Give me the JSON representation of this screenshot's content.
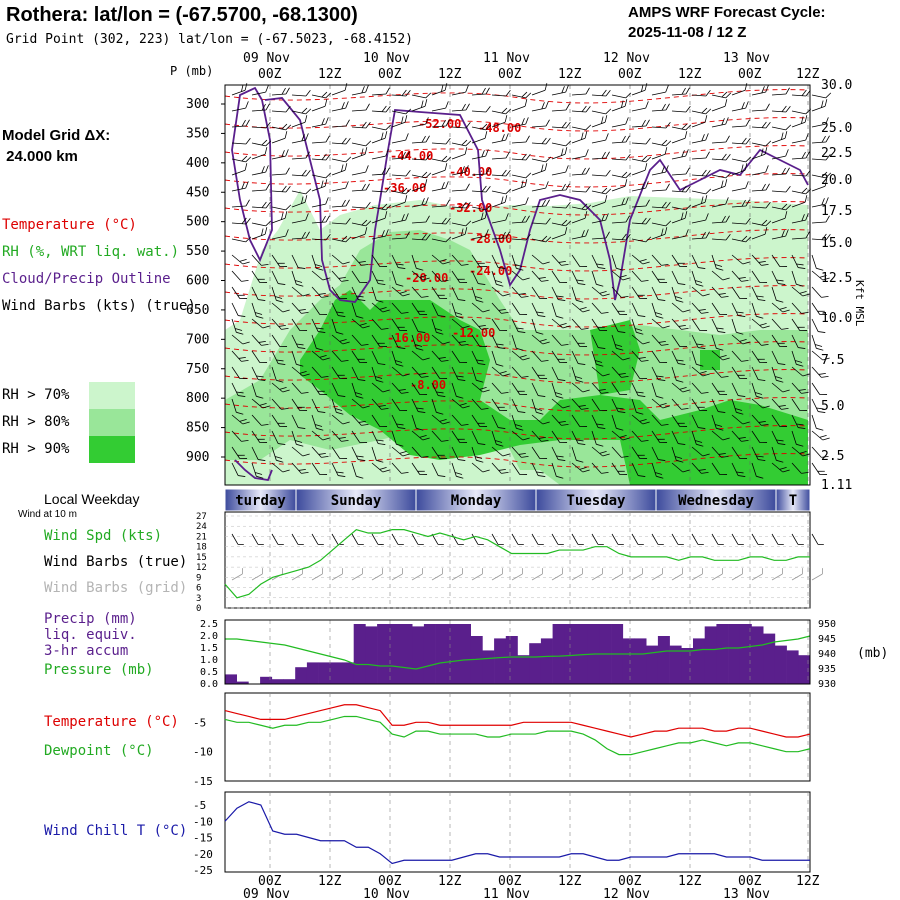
{
  "header": {
    "title": "Rothera:  lat/lon = (-67.5700, -68.1300)",
    "subtitle": "Grid Point (302, 223) lat/lon = (-67.5023, -68.4152)",
    "cycle_line1": "AMPS WRF Forecast Cycle:",
    "cycle_line2": "2025-11-08 / 12  Z"
  },
  "left_labels": {
    "pressure_unit": "P (mb)",
    "model_grid": "Model Grid ΔX:",
    "model_grid_val": " 24.000 km",
    "temperature": "Temperature (°C)",
    "rh": "RH (%, WRT liq. wat.)",
    "cloud": "Cloud/Precip Outline",
    "wind": "Wind Barbs (kts) (true)",
    "rh70": "RH > 70%",
    "rh80": "RH > 80%",
    "rh90": "RH > 90%",
    "weekday": "Local Weekday",
    "wind10": "Wind at 10 m",
    "wspd": "Wind Spd (kts)",
    "wbarbs_true": "Wind Barbs (true)",
    "wbarbs_grid": "Wind Barbs (grid)",
    "precip1": "Precip (mm)",
    "precip2": "liq. equiv.",
    "precip3": "3-hr accum",
    "pressure": "Pressure (mb)",
    "mb_unit": "(mb)",
    "t2": "Temperature (°C)",
    "td2": "Dewpoint (°C)",
    "wchill": "Wind Chill T (°C)",
    "kft": "Kft MSL"
  },
  "colors": {
    "rh70": "#ccf5cc",
    "rh80": "#99e699",
    "rh90": "#33cc33",
    "temperature": "#e00000",
    "cloud": "#5a1f8c",
    "green_line": "#22bb22",
    "precip_bar": "#5a1f8c",
    "windchill": "#1a1aa8",
    "label_red": "#dd0000",
    "label_green": "#22aa22",
    "label_purple": "#5a1f8c",
    "label_gray": "#b4b4b4",
    "label_blue": "#1a1aa8"
  },
  "time_axis": {
    "top_dates": [
      "09 Nov",
      "10 Nov",
      "11 Nov",
      "12 Nov",
      "13 Nov"
    ],
    "hour_labels": [
      "00Z",
      "12Z",
      "00Z",
      "12Z",
      "00Z",
      "12Z",
      "00Z",
      "12Z",
      "00Z",
      "12Z"
    ],
    "weekdays": [
      "turday",
      "Sunday",
      "Monday",
      "Tuesday",
      "Wednesday",
      "T"
    ]
  },
  "chart_data": [
    {
      "type": "heatmap",
      "panel": "vertical cross-section",
      "y_axis_label": "P (mb)",
      "y_ticks": [
        300,
        350,
        400,
        450,
        500,
        550,
        600,
        650,
        700,
        750,
        800,
        850,
        900
      ],
      "y_right_ticks": [
        "30.0",
        "25.0",
        "22.5",
        "20.0",
        "17.5",
        "15.0",
        "12.5",
        "10.0",
        "7.5",
        "5.0",
        "2.5",
        "1.11"
      ],
      "temperature_labels": [
        "-52.00",
        "-48.00",
        "-44.00",
        "-40.00",
        "-36.00",
        "-32.00",
        "-28.00",
        "-24.00",
        "-20.00",
        "-16.00",
        "-12.00",
        "-8.00"
      ],
      "legend": [
        "RH > 70%",
        "RH > 80%",
        "RH > 90%"
      ]
    },
    {
      "type": "line",
      "panel": "10 m wind",
      "y_ticks": [
        0,
        3,
        6,
        9,
        12,
        15,
        18,
        21,
        24,
        27
      ],
      "series": [
        {
          "name": "Wind Spd (kts)",
          "values": [
            7,
            3,
            4,
            7,
            9,
            10,
            11,
            12,
            14,
            17,
            20,
            23,
            22,
            22,
            23,
            23,
            22,
            21,
            22,
            21,
            20,
            21,
            20,
            18,
            16,
            16,
            16,
            16,
            17,
            17,
            17,
            18,
            18,
            16,
            15,
            15,
            15,
            15,
            14,
            15,
            15,
            14,
            14,
            14,
            15,
            15,
            14,
            14,
            15,
            15
          ]
        }
      ]
    },
    {
      "type": "bar",
      "panel": "precipitation and pressure",
      "y_ticks_left": [
        "0.0",
        "0.5",
        "1.0",
        "1.5",
        "2.0",
        "2.5"
      ],
      "y_ticks_right": [
        930,
        935,
        940,
        945,
        950
      ],
      "series": [
        {
          "name": "Precip (mm)",
          "values": [
            0.4,
            0.1,
            0,
            0.3,
            0.2,
            0.2,
            0.7,
            0.9,
            0.9,
            0.9,
            0.9,
            2.5,
            2.4,
            2.5,
            2.5,
            2.5,
            2.4,
            2.5,
            2.5,
            2.5,
            2.5,
            2.0,
            1.4,
            1.9,
            2.0,
            1.2,
            1.7,
            1.9,
            2.5,
            2.5,
            2.5,
            2.5,
            2.5,
            2.5,
            1.9,
            1.9,
            1.6,
            2.0,
            1.6,
            1.5,
            1.9,
            2.4,
            2.5,
            2.5,
            2.5,
            2.4,
            2.1,
            1.6,
            1.4,
            1.2
          ]
        },
        {
          "name": "Pressure (mb)",
          "values": [
            945,
            945,
            944.5,
            944,
            943.5,
            943,
            942,
            941,
            940,
            939,
            938,
            936.5,
            936.5,
            936,
            936,
            935.5,
            935,
            936,
            937,
            937.5,
            938,
            938.2,
            938.5,
            938.8,
            939,
            939,
            939,
            939.2,
            939.3,
            939.5,
            939.8,
            940,
            940,
            940,
            940,
            940,
            940.5,
            941,
            941,
            941,
            941.5,
            941.5,
            942,
            942,
            942.5,
            943,
            944,
            944.5,
            945,
            946
          ]
        }
      ]
    },
    {
      "type": "line",
      "panel": "2 m temperature and dewpoint",
      "y_ticks": [
        -5,
        -10,
        -15
      ],
      "series": [
        {
          "name": "Temperature (°C)",
          "values": [
            -3,
            -3.5,
            -4,
            -4.5,
            -4.5,
            -4.5,
            -4,
            -3.5,
            -3,
            -2.5,
            -2,
            -2,
            -2.5,
            -3,
            -5.5,
            -5.5,
            -5,
            -5,
            -5.5,
            -5.5,
            -5.5,
            -5.5,
            -5.5,
            -5.5,
            -5.5,
            -5,
            -5,
            -5,
            -5,
            -5,
            -5.5,
            -6,
            -6.5,
            -7,
            -7.5,
            -7,
            -6.5,
            -6.5,
            -6,
            -6,
            -6,
            -6.5,
            -6.5,
            -6,
            -6,
            -6.5,
            -7,
            -7.5,
            -7.5,
            -7
          ]
        },
        {
          "name": "Dewpoint (°C)",
          "values": [
            -4.5,
            -5,
            -5,
            -5.5,
            -6,
            -5.5,
            -5.5,
            -5,
            -5,
            -4.5,
            -4,
            -4,
            -4.5,
            -5,
            -7,
            -7.5,
            -6.5,
            -6.5,
            -7,
            -7,
            -7,
            -7,
            -7.5,
            -7.5,
            -7,
            -7,
            -7,
            -6.5,
            -6.5,
            -6.5,
            -7,
            -8,
            -9.5,
            -10.5,
            -10.5,
            -10,
            -9.5,
            -9,
            -8.5,
            -8.5,
            -8,
            -8.5,
            -9,
            -8.5,
            -8.5,
            -9,
            -9.5,
            -10,
            -10,
            -9.5
          ]
        }
      ]
    },
    {
      "type": "line",
      "panel": "wind chill",
      "y_ticks": [
        -5,
        -10,
        -15,
        -20,
        -25
      ],
      "series": [
        {
          "name": "Wind Chill T (°C)",
          "values": [
            -10,
            -6,
            -4,
            -5,
            -13,
            -14,
            -14,
            -15,
            -16,
            -16,
            -16,
            -18,
            -18,
            -20,
            -23,
            -22,
            -22,
            -22,
            -22,
            -22,
            -21,
            -20,
            -20,
            -21,
            -21,
            -21,
            -21,
            -21,
            -21,
            -20,
            -20,
            -21,
            -22,
            -22,
            -21,
            -21,
            -21,
            -21,
            -20,
            -20,
            -20,
            -20,
            -21,
            -21,
            -21,
            -22,
            -22,
            -22,
            -22,
            -22
          ]
        }
      ]
    }
  ]
}
